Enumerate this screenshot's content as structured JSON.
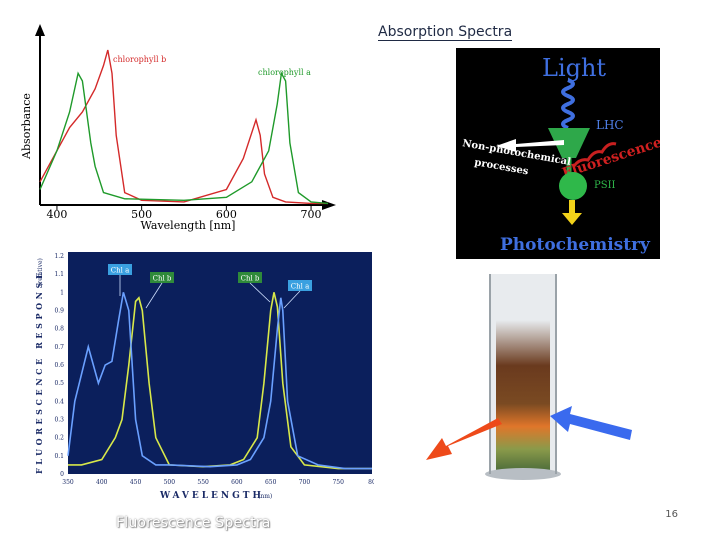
{
  "slide": {
    "title": "Absorption Spectra",
    "page_number": "16",
    "bottom_caption": "Fluorescence Spectra"
  },
  "absorption_chart": {
    "ylabel": "Absorbance",
    "xlabel": "Wavelength [nm]",
    "x_ticks": [
      "400",
      "500",
      "600",
      "700"
    ],
    "series_labels": {
      "chl_b": "chlorophyll b",
      "chl_a": "chlorophyll a"
    },
    "colors": {
      "chl_b": "#d42a2a",
      "chl_a": "#1f9a2a"
    }
  },
  "light_diagram": {
    "title": "Light",
    "lhc": "LHC",
    "non_photochemical_1": "Non-photochemical",
    "non_photochemical_2": "processes",
    "fluorescence": "Fluorescence",
    "psii": "PSII",
    "photochemistry": "Photochemistry"
  },
  "fluorescence_chart": {
    "ylabel_main": "FLUORESCENCE RESPONSE",
    "ylabel_unit": "(relative)",
    "xlabel_main": "WAVELENGTH",
    "xlabel_unit": "(nm)",
    "y_ticks": [
      "1.2",
      "1.1",
      "1",
      "0.9",
      "0.8",
      "0.7",
      "0.6",
      "0.5",
      "0.4",
      "0.3",
      "0.2",
      "0.1",
      "0"
    ],
    "x_ticks": [
      "350",
      "400",
      "450",
      "500",
      "550",
      "600",
      "650",
      "700",
      "750",
      "80"
    ],
    "labels": {
      "a1": "Chl a",
      "b1": "Chl b",
      "b2": "Chl b",
      "a2": "Chl a"
    },
    "colors": {
      "chl_a": "#6aa0ff",
      "chl_b": "#d8e84a"
    }
  },
  "chart_data": [
    {
      "type": "line",
      "xlabel": "Wavelength [nm]",
      "ylabel": "Absorbance",
      "xlim": [
        380,
        720
      ],
      "series": [
        {
          "name": "chlorophyll b",
          "x": [
            380,
            400,
            415,
            430,
            445,
            455,
            460,
            465,
            470,
            480,
            500,
            550,
            600,
            620,
            635,
            640,
            645,
            655,
            670,
            700,
            720
          ],
          "y": [
            0.15,
            0.35,
            0.5,
            0.6,
            0.75,
            0.9,
            1.0,
            0.85,
            0.45,
            0.08,
            0.03,
            0.02,
            0.1,
            0.3,
            0.55,
            0.45,
            0.2,
            0.05,
            0.02,
            0.01,
            0.01
          ]
        },
        {
          "name": "chlorophyll a",
          "x": [
            380,
            400,
            415,
            425,
            430,
            435,
            440,
            445,
            455,
            480,
            550,
            600,
            630,
            650,
            660,
            665,
            670,
            675,
            685,
            700,
            720
          ],
          "y": [
            0.1,
            0.35,
            0.6,
            0.85,
            0.8,
            0.6,
            0.4,
            0.25,
            0.08,
            0.04,
            0.03,
            0.05,
            0.15,
            0.35,
            0.65,
            0.85,
            0.8,
            0.4,
            0.08,
            0.02,
            0.01
          ]
        }
      ]
    },
    {
      "type": "line",
      "xlabel": "WAVELENGTH",
      "ylabel": "FLUORESCENCE RESPONSE",
      "xlim": [
        350,
        800
      ],
      "ylim": [
        0,
        1.2
      ],
      "series": [
        {
          "name": "Chl a",
          "x": [
            350,
            360,
            380,
            395,
            405,
            415,
            425,
            432,
            440,
            450,
            460,
            480,
            500,
            560,
            600,
            620,
            640,
            650,
            660,
            665,
            668,
            675,
            690,
            720,
            760,
            800
          ],
          "y": [
            0.1,
            0.4,
            0.7,
            0.5,
            0.6,
            0.62,
            0.85,
            1.0,
            0.9,
            0.3,
            0.1,
            0.05,
            0.05,
            0.04,
            0.05,
            0.08,
            0.2,
            0.4,
            0.8,
            0.97,
            0.9,
            0.4,
            0.1,
            0.05,
            0.03,
            0.03
          ]
        },
        {
          "name": "Chl b",
          "x": [
            350,
            370,
            400,
            420,
            430,
            440,
            450,
            455,
            460,
            470,
            480,
            500,
            550,
            590,
            610,
            630,
            640,
            650,
            655,
            660,
            668,
            680,
            700,
            750,
            800
          ],
          "y": [
            0.05,
            0.05,
            0.08,
            0.2,
            0.3,
            0.6,
            0.95,
            0.97,
            0.9,
            0.5,
            0.2,
            0.05,
            0.04,
            0.05,
            0.08,
            0.2,
            0.5,
            0.9,
            1.0,
            0.92,
            0.5,
            0.15,
            0.05,
            0.03,
            0.03
          ]
        }
      ]
    }
  ]
}
